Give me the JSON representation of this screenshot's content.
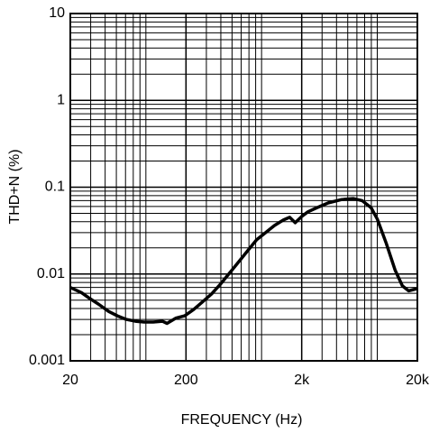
{
  "chart_data": {
    "type": "line",
    "xlabel": "FREQUENCY (Hz)",
    "ylabel": "THD+N (%)",
    "xscale": "log",
    "yscale": "log",
    "grid": true,
    "minor_grid": true,
    "xlim": [
      20,
      20000
    ],
    "ylim": [
      0.001,
      10
    ],
    "xticks": [
      20,
      200,
      {
        "value": 2000,
        "label": "2k"
      },
      {
        "value": 20000,
        "label": "20k"
      }
    ],
    "yticks": [
      0.001,
      0.01,
      0.1,
      1,
      10
    ],
    "series": [
      {
        "color": "#000000",
        "x": [
          20,
          25,
          29,
          35,
          43,
          51,
          61,
          73,
          87,
          104,
          125,
          137,
          163,
          195,
          233,
          279,
          333,
          399,
          477,
          571,
          682,
          816,
          975,
          1166,
          1394,
          1575,
          1758,
          2000,
          2264,
          2707,
          3401,
          4435,
          5568,
          6656,
          7960,
          9000,
          10760,
          12870,
          14840,
          16800,
          20000
        ],
        "values": [
          0.007,
          0.0061,
          0.0053,
          0.0045,
          0.0037,
          0.0033,
          0.003,
          0.00286,
          0.0028,
          0.0028,
          0.00286,
          0.0027,
          0.0031,
          0.0033,
          0.0039,
          0.0048,
          0.0059,
          0.0077,
          0.0103,
          0.0138,
          0.0185,
          0.0248,
          0.03,
          0.0363,
          0.042,
          0.045,
          0.039,
          0.046,
          0.052,
          0.058,
          0.066,
          0.072,
          0.074,
          0.07,
          0.058,
          0.043,
          0.0226,
          0.011,
          0.0073,
          0.0064,
          0.0068
        ]
      }
    ]
  }
}
